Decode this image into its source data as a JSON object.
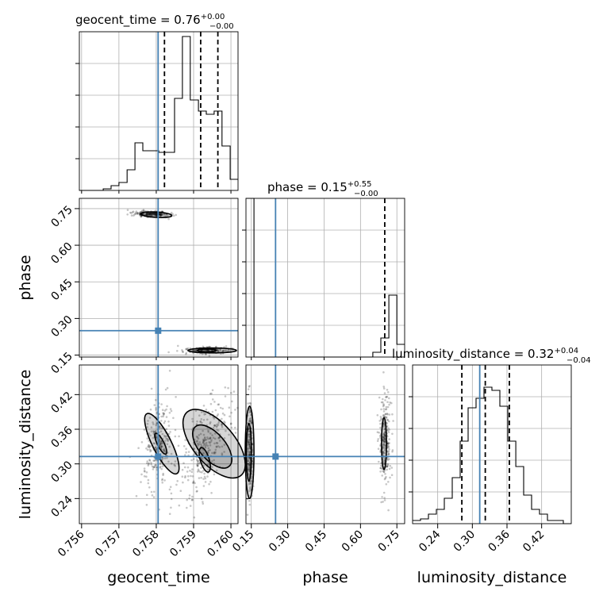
{
  "chart_data": {
    "type": "corner",
    "parameters": [
      {
        "key": "geocent_time",
        "label": "geocent_time",
        "truth": 0.75805,
        "range": [
          0.75594,
          0.76019
        ],
        "title": {
          "name": "geocent_time",
          "value": "0.76",
          "plus": "+0.00",
          "minus": "−0.00"
        },
        "ticks": [
          0.756,
          0.757,
          0.758,
          0.759,
          0.76
        ],
        "tick_labels": [
          "0.756",
          "0.757",
          "0.758",
          "0.759",
          "0.760"
        ],
        "quantiles": [
          0.75822,
          0.75919,
          0.75965
        ],
        "hist_edges": [
          0.75594,
          0.75615,
          0.75637,
          0.75658,
          0.75679,
          0.757,
          0.75722,
          0.75743,
          0.75764,
          0.75785,
          0.75807,
          0.75828,
          0.75849,
          0.7587,
          0.75891,
          0.75913,
          0.75934,
          0.75955,
          0.75976,
          0.75998,
          0.76019
        ],
        "hist_counts": [
          0.0,
          0.0,
          0.0,
          0.01,
          0.03,
          0.05,
          0.13,
          0.3,
          0.25,
          0.25,
          0.24,
          0.24,
          0.58,
          0.97,
          0.57,
          0.5,
          0.48,
          0.5,
          0.28,
          0.07
        ]
      },
      {
        "key": "phase",
        "label": "phase",
        "truth": 0.25,
        "range": [
          0.128,
          0.782
        ],
        "title": {
          "name": "phase",
          "value": "0.15",
          "plus": "+0.55",
          "minus": "−0.00"
        },
        "ticks": [
          0.15,
          0.3,
          0.45,
          0.6,
          0.75
        ],
        "tick_labels": [
          "0.15",
          "0.30",
          "0.45",
          "0.60",
          "0.75"
        ],
        "quantiles": [
          0.7
        ],
        "hist_edges": [
          0.128,
          0.161,
          0.193,
          0.226,
          0.259,
          0.292,
          0.324,
          0.357,
          0.39,
          0.422,
          0.455,
          0.488,
          0.521,
          0.553,
          0.586,
          0.619,
          0.651,
          0.684,
          0.717,
          0.75,
          0.782
        ],
        "hist_counts": [
          1.0,
          0,
          0,
          0,
          0,
          0,
          0,
          0,
          0,
          0,
          0,
          0,
          0,
          0,
          0,
          0,
          0.03,
          0.12,
          0.39,
          0.08
        ]
      },
      {
        "key": "luminosity_distance",
        "label": "luminosity_distance",
        "truth": 0.3128,
        "range": [
          0.1965,
          0.4713
        ],
        "title": {
          "name": "luminosity_distance",
          "value": "0.32",
          "plus": "+0.04",
          "minus": "−0.04"
        },
        "ticks": [
          0.24,
          0.3,
          0.36,
          0.42
        ],
        "tick_labels": [
          "0.24",
          "0.30",
          "0.36",
          "0.42"
        ],
        "quantiles": [
          0.2818,
          0.3224,
          0.3641
        ],
        "hist_edges": [
          0.1965,
          0.2102,
          0.224,
          0.2377,
          0.2515,
          0.2652,
          0.279,
          0.2927,
          0.3064,
          0.3202,
          0.3339,
          0.3477,
          0.3614,
          0.3752,
          0.3889,
          0.4026,
          0.4164,
          0.4301,
          0.4439,
          0.4576,
          0.4713
        ],
        "hist_counts": [
          0.02,
          0.03,
          0.06,
          0.09,
          0.16,
          0.29,
          0.52,
          0.73,
          0.79,
          0.86,
          0.84,
          0.74,
          0.52,
          0.36,
          0.18,
          0.09,
          0.06,
          0.02,
          0.02,
          0.0
        ]
      }
    ],
    "phase_ylim": [
      0.142,
      0.792
    ],
    "phase_yticks": [
      0.15,
      0.3,
      0.45,
      0.6,
      0.75
    ],
    "phase_ytick_labels": [
      "0.15",
      "0.30",
      "0.45",
      "0.60",
      "0.75"
    ],
    "ld_yticks": [
      0.24,
      0.3,
      0.36,
      0.42
    ],
    "ld_ytick_labels": [
      "0.24",
      "0.30",
      "0.36",
      "0.42"
    ],
    "hist_ytick_fractions": [
      0.2,
      0.4,
      0.6,
      0.8
    ],
    "scatter_clusters": [
      {
        "panel": "time-phase",
        "center": [
          0.75787,
          0.728
        ],
        "spread": [
          0.00025,
          0.006
        ],
        "tilt": -0.2,
        "n": 230
      },
      {
        "panel": "time-phase",
        "center": [
          0.75935,
          0.17
        ],
        "spread": [
          0.0003,
          0.008
        ],
        "tilt": 0.0,
        "n": 180
      },
      {
        "panel": "time-ld",
        "center": [
          0.75805,
          0.335
        ],
        "spread": [
          0.00018,
          0.04
        ],
        "tilt": 0.3,
        "n": 260
      },
      {
        "panel": "time-ld",
        "center": [
          0.75928,
          0.325
        ],
        "spread": [
          0.0003,
          0.045
        ],
        "tilt": 0.75,
        "n": 320
      },
      {
        "panel": "phase-ld",
        "center": [
          0.145,
          0.325
        ],
        "spread": [
          0.006,
          0.04
        ],
        "tilt": 0.0,
        "n": 220
      },
      {
        "panel": "phase-ld",
        "center": [
          0.7,
          0.34
        ],
        "spread": [
          0.012,
          0.04
        ],
        "tilt": 0.0,
        "n": 260
      }
    ],
    "contours": [
      {
        "panel": "time-phase",
        "center": [
          0.758,
          0.725
        ],
        "radii": [
          0.00042,
          0.011
        ],
        "rot": -0.06
      },
      {
        "panel": "time-phase",
        "center": [
          0.7595,
          0.169
        ],
        "radii": [
          0.00065,
          0.01
        ],
        "rot": 0.0
      },
      {
        "panel": "time-phase",
        "center": [
          0.75935,
          0.169
        ],
        "radii": [
          0.00025,
          0.006
        ],
        "rot": 0.0
      },
      {
        "panel": "time-ld",
        "center": [
          0.75815,
          0.335
        ],
        "radii": [
          0.00025,
          0.058
        ],
        "rot": 0.5
      },
      {
        "panel": "time-ld",
        "center": [
          0.75812,
          0.335
        ],
        "radii": [
          9e-05,
          0.02
        ],
        "rot": 0.5
      },
      {
        "panel": "time-ld",
        "center": [
          0.75955,
          0.335
        ],
        "radii": [
          0.00055,
          0.072
        ],
        "rot": 0.85
      },
      {
        "panel": "time-ld",
        "center": [
          0.7595,
          0.33
        ],
        "radii": [
          0.00035,
          0.045
        ],
        "rot": 0.85
      },
      {
        "panel": "time-ld",
        "center": [
          0.7593,
          0.307
        ],
        "radii": [
          0.00012,
          0.022
        ],
        "rot": 0.3
      },
      {
        "panel": "phase-ld",
        "center": [
          0.143,
          0.32
        ],
        "radii": [
          0.018,
          0.08
        ],
        "rot": 0.0
      },
      {
        "panel": "phase-ld",
        "center": [
          0.14,
          0.32
        ],
        "radii": [
          0.01,
          0.05
        ],
        "rot": 0.0
      },
      {
        "panel": "phase-ld",
        "center": [
          0.697,
          0.335
        ],
        "radii": [
          0.01,
          0.045
        ],
        "rot": 0.0
      }
    ]
  }
}
